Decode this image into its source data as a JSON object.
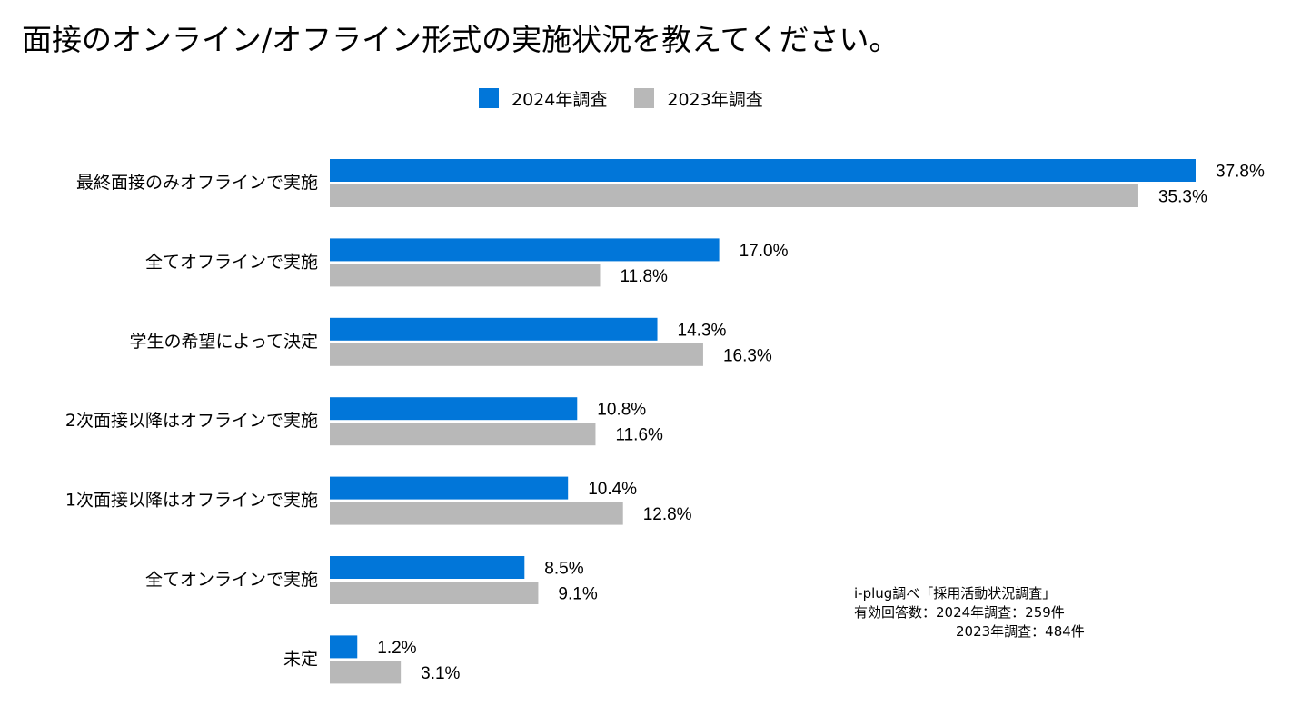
{
  "title": "面接のオンライン/オフライン形式の実施状況を教えてください。",
  "colors": {
    "series_2024": "#0176D9",
    "series_2023": "#B8B8B8"
  },
  "chart_data": {
    "type": "bar",
    "orientation": "horizontal",
    "categories": [
      "最終面接のみオフラインで実施",
      "全てオフラインで実施",
      "学生の希望によって決定",
      "2次面接以降はオフラインで実施",
      "1次面接以降はオフラインで実施",
      "全てオンラインで実施",
      "未定"
    ],
    "series": [
      {
        "name": "2024年調査",
        "values": [
          37.8,
          17.0,
          14.3,
          10.8,
          10.4,
          8.5,
          1.2
        ]
      },
      {
        "name": "2023年調査",
        "values": [
          35.3,
          11.8,
          16.3,
          11.6,
          12.8,
          9.1,
          3.1
        ]
      }
    ],
    "value_suffix": "%",
    "xlim": [
      0,
      37.8
    ],
    "legend_position": "top"
  },
  "source_note": {
    "line1": "i-plug調べ「採用活動状況調査」",
    "line2": "有効回答数：2024年調査：259件",
    "line3": "2023年調査：484件"
  }
}
